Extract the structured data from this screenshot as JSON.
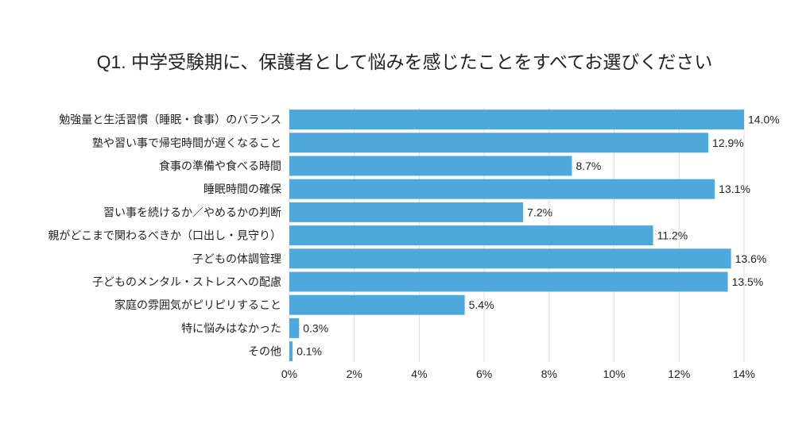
{
  "chart_data": {
    "type": "bar",
    "orientation": "horizontal",
    "title": "Q1. 中学受験期に、保護者として悩みを感じたことをすべてお選びください",
    "categories": [
      "勉強量と生活習慣（睡眠・食事）のバランス",
      "塾や習い事で帰宅時間が遅くなること",
      "食事の準備や食べる時間",
      "睡眠時間の確保",
      "習い事を続けるか／やめるかの判断",
      "親がどこまで関わるべきか（口出し・見守り）",
      "子どもの体調管理",
      "子どものメンタル・ストレスへの配慮",
      "家庭の雰囲気がピリピリすること",
      "特に悩みはなかった",
      "その他"
    ],
    "values": [
      14.0,
      12.9,
      8.7,
      13.1,
      7.2,
      11.2,
      13.6,
      13.5,
      5.4,
      0.3,
      0.1
    ],
    "value_labels": [
      "14.0%",
      "12.9%",
      "8.7%",
      "13.1%",
      "7.2%",
      "11.2%",
      "13.6%",
      "13.5%",
      "5.4%",
      "0.3%",
      "0.1%"
    ],
    "xlim": [
      0,
      14
    ],
    "xticks": [
      0,
      2,
      4,
      6,
      8,
      10,
      12,
      14
    ],
    "xtick_labels": [
      "0%",
      "2%",
      "4%",
      "6%",
      "8%",
      "10%",
      "12%",
      "14%"
    ],
    "grid": "vertical",
    "bar_color": "#4fa8dc",
    "legend": "none"
  }
}
